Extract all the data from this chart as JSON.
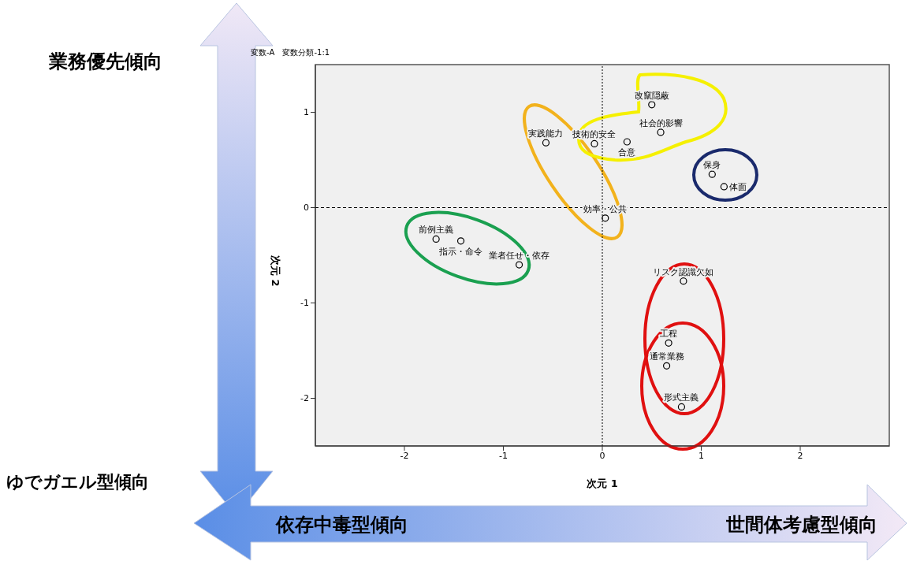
{
  "chart_data": {
    "type": "scatter",
    "xlabel": "次元 1",
    "ylabel": "次元 2",
    "x": [
      -0.57,
      -0.08,
      0.25,
      0.5,
      0.59,
      1.11,
      1.23,
      0.03,
      -1.68,
      -1.43,
      -0.84,
      0.82,
      0.67,
      0.65,
      0.8
    ],
    "series": [
      {
        "color": "#000000",
        "values": [
          0.68,
          0.67,
          0.69,
          1.08,
          0.79,
          0.35,
          0.22,
          -0.11,
          -0.33,
          -0.35,
          -0.6,
          -0.77,
          -1.42,
          -1.66,
          -2.09
        ]
      }
    ],
    "marker": "circle",
    "xlim": [
      -2.9,
      2.9
    ],
    "xticks": [
      -2,
      -1,
      0,
      1,
      2
    ],
    "ylim": [
      -2.5,
      1.5
    ],
    "yticks": [
      -2,
      -1,
      0,
      1
    ],
    "grid": false,
    "legend": false,
    "ref_lines": [
      {
        "axis": "x",
        "value": 0,
        "color": "#000000",
        "line_style": "dotted"
      },
      {
        "axis": "y",
        "value": 0,
        "color": "#000000",
        "line_style": "dashed"
      }
    ],
    "annotations": [
      "変数-A　変数分類-1:1",
      "業務優先傾向",
      "ゆでガエル型傾向",
      "依存中毒型傾向",
      "世間体考慮型傾向",
      {
        "text": "実践能力",
        "x": -0.57,
        "y": 0.68
      },
      {
        "text": "技術的安全",
        "x": -0.08,
        "y": 0.67
      },
      {
        "text": "合意",
        "x": 0.25,
        "y": 0.69
      },
      {
        "text": "改竄隠蔽",
        "x": 0.5,
        "y": 1.08
      },
      {
        "text": "社会的影響",
        "x": 0.59,
        "y": 0.79
      },
      {
        "text": "保身",
        "x": 1.11,
        "y": 0.35
      },
      {
        "text": "体面",
        "x": 1.23,
        "y": 0.22
      },
      {
        "text": "効率・公共",
        "x": 0.03,
        "y": -0.11
      },
      {
        "text": "前例主義",
        "x": -1.68,
        "y": -0.33
      },
      {
        "text": "指示・命令",
        "x": -1.43,
        "y": -0.35
      },
      {
        "text": "業者任せ・依存",
        "x": -0.84,
        "y": -0.6
      },
      {
        "text": "リスク認識欠如",
        "x": 0.82,
        "y": -0.77
      },
      {
        "text": "工程",
        "x": 0.67,
        "y": -1.42
      },
      {
        "text": "通常業務",
        "x": 0.65,
        "y": -1.66
      },
      {
        "text": "形式主義",
        "x": 0.8,
        "y": -2.09
      }
    ]
  }
}
